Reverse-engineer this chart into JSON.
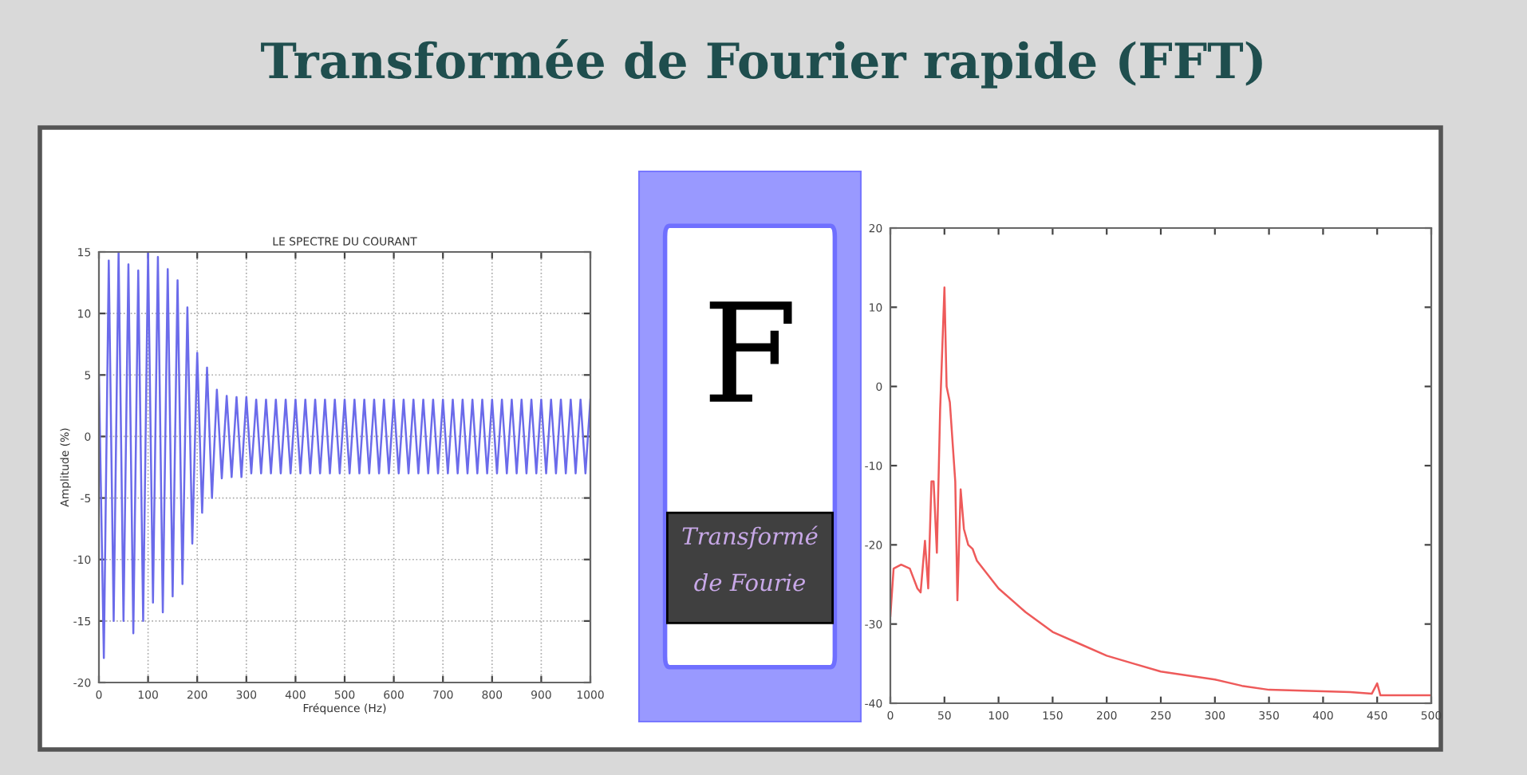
{
  "chart_data": [
    {
      "type": "line",
      "title": "LE SPECTRE DU COURANT",
      "xlabel": "Fréquence (Hz)",
      "ylabel": "Amplitude (%)",
      "grid": true,
      "xlim": [
        0,
        1000
      ],
      "ylim": [
        -20,
        15
      ],
      "xticks": [
        0,
        100,
        200,
        300,
        400,
        500,
        600,
        700,
        800,
        900,
        1000
      ],
      "yticks": [
        -20,
        -15,
        -10,
        -5,
        0,
        5,
        10,
        15
      ],
      "x": [
        0,
        10,
        20,
        30,
        40,
        50,
        60,
        70,
        80,
        90,
        100,
        110,
        120,
        130,
        140,
        150,
        160,
        170,
        180,
        190,
        200,
        210,
        220,
        230,
        240,
        250,
        260,
        270,
        280,
        290,
        300,
        310,
        320,
        330,
        340,
        350,
        360,
        370,
        380,
        390,
        400,
        410,
        420,
        430,
        440,
        450,
        460,
        470,
        480,
        490,
        500,
        510,
        520,
        530,
        540,
        550,
        560,
        570,
        580,
        590,
        600,
        610,
        620,
        630,
        640,
        650,
        660,
        670,
        680,
        690,
        700,
        710,
        720,
        730,
        740,
        750,
        760,
        770,
        780,
        790,
        800,
        810,
        820,
        830,
        840,
        850,
        860,
        870,
        880,
        890,
        900,
        910,
        920,
        930,
        940,
        950,
        960,
        970,
        980,
        990,
        1000
      ],
      "series": [
        {
          "color": "#6b6bea",
          "values": [
            5,
            -18,
            14.3,
            -15,
            15,
            -15,
            14,
            -16,
            13.5,
            -15,
            15,
            -13.5,
            14.6,
            -14.3,
            13.6,
            -13,
            12.7,
            -12,
            10.5,
            -8.7,
            6.8,
            -6.2,
            5.6,
            -5,
            3.8,
            -3.4,
            3.3,
            -3.3,
            3.2,
            -3.3,
            3.2,
            -3,
            3,
            -3,
            3,
            -3,
            3,
            -3,
            3,
            -3,
            3,
            -3,
            3,
            -3,
            3,
            -3,
            3,
            -3,
            3,
            -3,
            3,
            -3,
            3,
            -3,
            3,
            -3,
            3,
            -3,
            3,
            -3,
            3,
            -3,
            3,
            -3,
            3,
            -3,
            3,
            -3,
            3,
            -3,
            3,
            -3,
            3,
            -3,
            3,
            -3,
            3,
            -3,
            3,
            -3,
            3,
            -3,
            3,
            -3,
            3,
            -3,
            3,
            -3,
            3,
            -3,
            3,
            -3,
            3,
            -3,
            3,
            -3,
            3,
            -3,
            3,
            -3,
            3
          ]
        }
      ]
    },
    {
      "type": "other",
      "title": "Transformée de Fourier rapide (FFT)",
      "annotations": [
        "F",
        "Transformé de Fourie"
      ]
    },
    {
      "type": "line",
      "xlim": [
        0,
        500
      ],
      "ylim": [
        -40,
        20
      ],
      "xticks": [
        0,
        50,
        100,
        150,
        200,
        250,
        300,
        350,
        400,
        450,
        500
      ],
      "yticks": [
        -40,
        -30,
        -20,
        -10,
        0,
        10,
        20
      ],
      "x": [
        0,
        3,
        10,
        18,
        25,
        28,
        32,
        35,
        38,
        40,
        43,
        46,
        50,
        52,
        55,
        60,
        62,
        65,
        68,
        72,
        76,
        80,
        100,
        125,
        150,
        175,
        200,
        225,
        250,
        275,
        300,
        325,
        350,
        375,
        400,
        425,
        445,
        450,
        453,
        475,
        500
      ],
      "series": [
        {
          "color": "#ee5a5a",
          "values": [
            -29,
            -23,
            -22.5,
            -23,
            -25.5,
            -26,
            -19.5,
            -25.5,
            -12,
            -12,
            -21,
            -3,
            12.5,
            0,
            -2,
            -12,
            -27,
            -13,
            -18,
            -20,
            -20.5,
            -22,
            -25.5,
            -28.5,
            -31,
            -32.5,
            -34,
            -35,
            -36,
            -36.5,
            -37,
            -37.8,
            -38.3,
            -38.4,
            -38.5,
            -38.6,
            -38.8,
            -37.5,
            -39,
            -39,
            -39
          ]
        }
      ]
    }
  ]
}
